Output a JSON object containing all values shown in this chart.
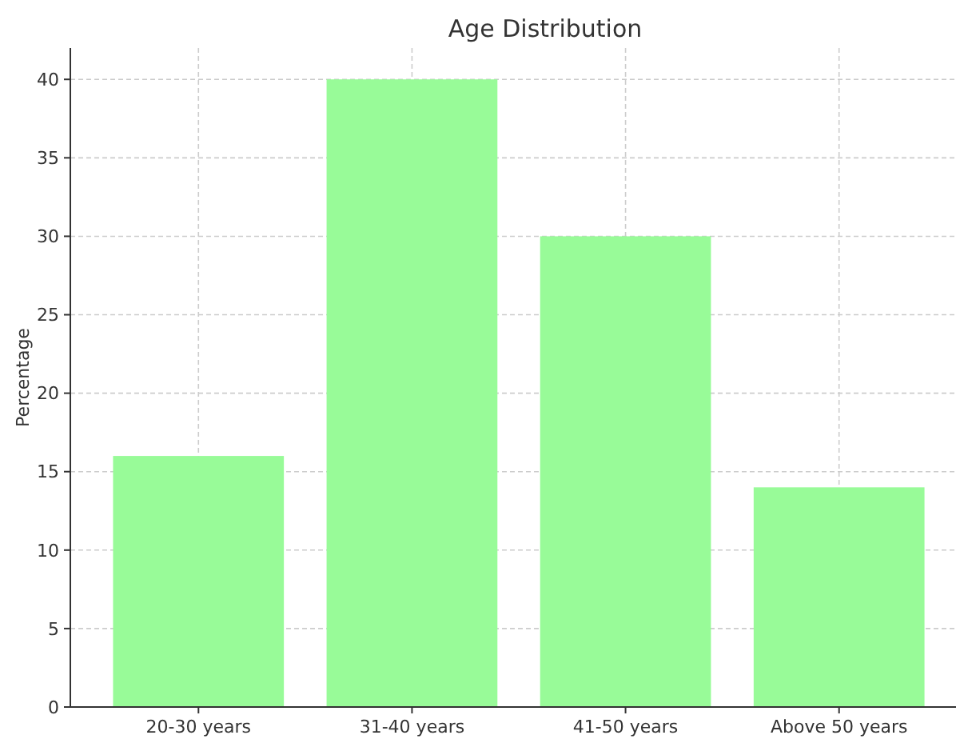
{
  "chart_data": {
    "type": "bar",
    "title": "Age Distribution",
    "ylabel": "Percentage",
    "categories": [
      "20-30 years",
      "31-40 years",
      "41-50 years",
      "Above 50 years"
    ],
    "values": [
      16,
      40,
      30,
      14
    ],
    "color": "#98fb98",
    "ylim": [
      0,
      42
    ],
    "yticks": [
      0,
      5,
      10,
      15,
      20,
      25,
      30,
      35,
      40
    ],
    "grid": true
  }
}
